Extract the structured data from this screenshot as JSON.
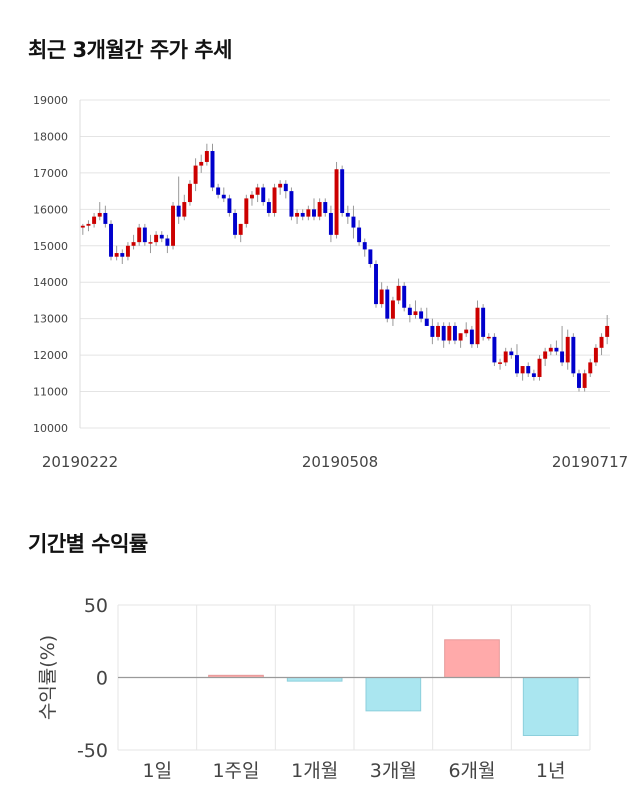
{
  "section1_title": "최근 3개월간 주가 추세",
  "section2_title": "기간별 수익률",
  "chart_data": [
    {
      "type": "candlestick",
      "title": "최근 3개월간 주가 추세",
      "ylim": [
        10000,
        19000
      ],
      "y_ticks": [
        "19000",
        "18000",
        "17000",
        "16000",
        "15000",
        "14000",
        "13000",
        "12000",
        "11000",
        "10000"
      ],
      "x_tick_labels": [
        "20190222",
        "20190508",
        "20190717"
      ],
      "grid": true,
      "colors": {
        "up": "#cc0000",
        "down": "#0000cc"
      },
      "ohlc": [
        [
          15500,
          15600,
          15300,
          15550
        ],
        [
          15550,
          15700,
          15400,
          15600
        ],
        [
          15600,
          15900,
          15500,
          15800
        ],
        [
          15800,
          16200,
          15700,
          15900
        ],
        [
          15900,
          16100,
          15500,
          15600
        ],
        [
          15600,
          15700,
          14600,
          14700
        ],
        [
          14700,
          15000,
          14600,
          14800
        ],
        [
          14800,
          14900,
          14500,
          14700
        ],
        [
          14700,
          15100,
          14600,
          15000
        ],
        [
          15000,
          15300,
          14900,
          15100
        ],
        [
          15100,
          15600,
          15000,
          15500
        ],
        [
          15500,
          15600,
          15000,
          15100
        ],
        [
          15100,
          15300,
          14800,
          15100
        ],
        [
          15100,
          15400,
          15000,
          15300
        ],
        [
          15300,
          15400,
          15100,
          15200
        ],
        [
          15200,
          15300,
          14800,
          15000
        ],
        [
          15000,
          16200,
          14900,
          16100
        ],
        [
          16100,
          16900,
          15600,
          15800
        ],
        [
          15800,
          16400,
          15700,
          16200
        ],
        [
          16200,
          16800,
          16100,
          16700
        ],
        [
          16700,
          17400,
          16500,
          17200
        ],
        [
          17200,
          17500,
          17000,
          17300
        ],
        [
          17300,
          17800,
          17200,
          17600
        ],
        [
          17600,
          17800,
          16500,
          16600
        ],
        [
          16600,
          16700,
          16300,
          16400
        ],
        [
          16400,
          16600,
          16200,
          16300
        ],
        [
          16300,
          16400,
          15800,
          15900
        ],
        [
          15900,
          16000,
          15200,
          15300
        ],
        [
          15300,
          15600,
          15100,
          15600
        ],
        [
          15600,
          16400,
          15500,
          16300
        ],
        [
          16300,
          16500,
          16100,
          16400
        ],
        [
          16400,
          16700,
          16200,
          16600
        ],
        [
          16600,
          16700,
          16100,
          16200
        ],
        [
          16200,
          16300,
          15800,
          15900
        ],
        [
          15900,
          16700,
          15800,
          16600
        ],
        [
          16600,
          16800,
          16400,
          16700
        ],
        [
          16700,
          16800,
          16300,
          16500
        ],
        [
          16500,
          16600,
          15700,
          15800
        ],
        [
          15800,
          16000,
          15600,
          15900
        ],
        [
          15900,
          16000,
          15700,
          15800
        ],
        [
          15800,
          16100,
          15700,
          16000
        ],
        [
          16000,
          16300,
          15700,
          15800
        ],
        [
          15800,
          16300,
          15700,
          16200
        ],
        [
          16200,
          16300,
          15800,
          15900
        ],
        [
          15900,
          16100,
          15100,
          15300
        ],
        [
          15300,
          17300,
          15200,
          17100
        ],
        [
          17100,
          17200,
          15800,
          15900
        ],
        [
          15900,
          16100,
          15600,
          15800
        ],
        [
          15800,
          16100,
          15200,
          15500
        ],
        [
          15500,
          15700,
          15000,
          15100
        ],
        [
          15100,
          15200,
          14700,
          14900
        ],
        [
          14900,
          14900,
          14400,
          14500
        ],
        [
          14500,
          14600,
          13300,
          13400
        ],
        [
          13400,
          14000,
          13300,
          13800
        ],
        [
          13800,
          13900,
          12900,
          13000
        ],
        [
          13000,
          13600,
          12800,
          13500
        ],
        [
          13500,
          14100,
          13400,
          13900
        ],
        [
          13900,
          14000,
          13200,
          13300
        ],
        [
          13300,
          13400,
          12900,
          13100
        ],
        [
          13100,
          13500,
          13000,
          13200
        ],
        [
          13200,
          13300,
          12900,
          13000
        ],
        [
          13000,
          13300,
          12800,
          12800
        ],
        [
          12800,
          13000,
          12300,
          12500
        ],
        [
          12500,
          12900,
          12400,
          12800
        ],
        [
          12800,
          12900,
          12200,
          12400
        ],
        [
          12400,
          12900,
          12300,
          12800
        ],
        [
          12800,
          12900,
          12300,
          12400
        ],
        [
          12400,
          12600,
          12200,
          12600
        ],
        [
          12600,
          12900,
          12500,
          12700
        ],
        [
          12700,
          12800,
          12200,
          12300
        ],
        [
          12300,
          13500,
          12200,
          13300
        ],
        [
          13300,
          13400,
          12400,
          12500
        ],
        [
          12500,
          12600,
          12400,
          12500
        ],
        [
          12500,
          12600,
          11700,
          11800
        ],
        [
          11800,
          11900,
          11600,
          11800
        ],
        [
          11800,
          12200,
          11700,
          12100
        ],
        [
          12100,
          12200,
          11900,
          12000
        ],
        [
          12000,
          12300,
          11400,
          11500
        ],
        [
          11500,
          11700,
          11300,
          11700
        ],
        [
          11700,
          11800,
          11400,
          11500
        ],
        [
          11500,
          11600,
          11300,
          11400
        ],
        [
          11400,
          12000,
          11300,
          11900
        ],
        [
          11900,
          12200,
          11700,
          12100
        ],
        [
          12100,
          12300,
          12000,
          12200
        ],
        [
          12200,
          12400,
          12000,
          12100
        ],
        [
          12100,
          12800,
          11700,
          11800
        ],
        [
          11800,
          12700,
          11600,
          12500
        ],
        [
          12500,
          12600,
          11400,
          11500
        ],
        [
          11500,
          11600,
          11000,
          11100
        ],
        [
          11100,
          11600,
          11000,
          11500
        ],
        [
          11500,
          11900,
          11400,
          11800
        ],
        [
          11800,
          12300,
          11700,
          12200
        ],
        [
          12200,
          12600,
          12000,
          12500
        ],
        [
          12500,
          13100,
          12300,
          12800
        ]
      ]
    },
    {
      "type": "bar",
      "title": "기간별 수익률",
      "ylabel": "수익률(%)",
      "ylim": [
        -50,
        50
      ],
      "y_ticks": [
        "50",
        "0",
        "-50"
      ],
      "categories": [
        "1일",
        "1주일",
        "1개월",
        "3개월",
        "6개월",
        "1년"
      ],
      "values": [
        0,
        1.5,
        -2.5,
        -23,
        26,
        -40
      ],
      "colors": {
        "positive": "#ffaaaa",
        "negative": "#aae6f0"
      }
    }
  ]
}
